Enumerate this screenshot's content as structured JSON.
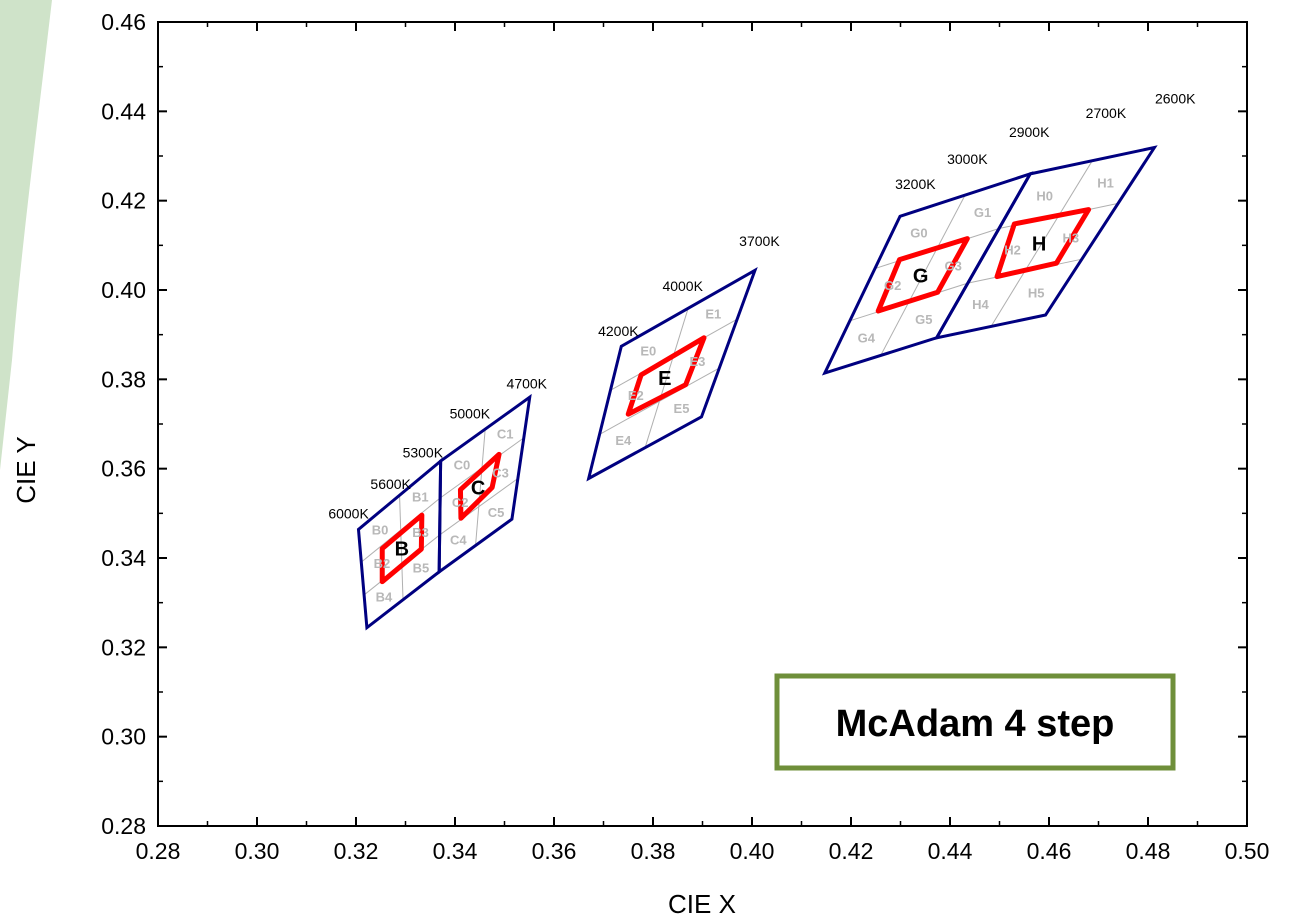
{
  "colors": {
    "bin_outline": "#000080",
    "macadam_ellipse": "#ff0000",
    "subgrid": "#b0b0b0",
    "annotation_border": "#6f8f3a",
    "background_accent": "#cfe3c9"
  },
  "chart_data": {
    "type": "scatter",
    "title": "",
    "xlabel": "CIE X",
    "ylabel": "CIE Y",
    "xlim": [
      0.28,
      0.5
    ],
    "ylim": [
      0.28,
      0.46
    ],
    "xticks": [
      "0.28",
      "0.30",
      "0.32",
      "0.34",
      "0.36",
      "0.38",
      "0.40",
      "0.42",
      "0.44",
      "0.46",
      "0.48",
      "0.50"
    ],
    "yticks": [
      "0.28",
      "0.30",
      "0.32",
      "0.34",
      "0.36",
      "0.38",
      "0.40",
      "0.42",
      "0.44",
      "0.46"
    ],
    "grid": false,
    "annotation": "McAdam 4 step",
    "cct_labels": [
      {
        "text": "6000K",
        "x": 0.3185,
        "y": 0.3488
      },
      {
        "text": "5600K",
        "x": 0.327,
        "y": 0.3555
      },
      {
        "text": "5300K",
        "x": 0.3335,
        "y": 0.3625
      },
      {
        "text": "5000K",
        "x": 0.343,
        "y": 0.3712
      },
      {
        "text": "4700K",
        "x": 0.3545,
        "y": 0.378
      },
      {
        "text": "4200K",
        "x": 0.373,
        "y": 0.3897
      },
      {
        "text": "4000K",
        "x": 0.386,
        "y": 0.3998
      },
      {
        "text": "3700K",
        "x": 0.4015,
        "y": 0.4098
      },
      {
        "text": "3200K",
        "x": 0.433,
        "y": 0.4226
      },
      {
        "text": "3000K",
        "x": 0.4435,
        "y": 0.4282
      },
      {
        "text": "2900K",
        "x": 0.456,
        "y": 0.4343
      },
      {
        "text": "2700K",
        "x": 0.4715,
        "y": 0.4385
      },
      {
        "text": "2600K",
        "x": 0.4855,
        "y": 0.4418
      }
    ],
    "bins": [
      {
        "name": "B",
        "outline": [
          [
            0.3205,
            0.3464
          ],
          [
            0.3371,
            0.3617
          ],
          [
            0.3368,
            0.3369
          ],
          [
            0.3222,
            0.3244
          ]
        ]
      },
      {
        "name": "C",
        "outline": [
          [
            0.3371,
            0.3617
          ],
          [
            0.3551,
            0.376
          ],
          [
            0.3515,
            0.3487
          ],
          [
            0.3368,
            0.3369
          ]
        ]
      },
      {
        "name": "E",
        "outline": [
          [
            0.3736,
            0.3874
          ],
          [
            0.4006,
            0.4044
          ],
          [
            0.3898,
            0.3716
          ],
          [
            0.367,
            0.3578
          ]
        ]
      },
      {
        "name": "G",
        "outline": [
          [
            0.4299,
            0.4165
          ],
          [
            0.4562,
            0.426
          ],
          [
            0.4373,
            0.3893
          ],
          [
            0.4147,
            0.3814
          ]
        ]
      },
      {
        "name": "H",
        "outline": [
          [
            0.4562,
            0.426
          ],
          [
            0.4813,
            0.4319
          ],
          [
            0.4593,
            0.3944
          ],
          [
            0.4373,
            0.3893
          ]
        ]
      }
    ],
    "subbins": [
      {
        "group": "B",
        "labels": [
          "B0",
          "B1",
          "B2",
          "B3",
          "B4",
          "B5"
        ]
      },
      {
        "group": "C",
        "labels": [
          "C0",
          "C1",
          "C2",
          "C3",
          "C4",
          "C5"
        ]
      },
      {
        "group": "E",
        "labels": [
          "E0",
          "E1",
          "E2",
          "E3",
          "E4",
          "E5"
        ]
      },
      {
        "group": "G",
        "labels": [
          "G0",
          "G1",
          "G2",
          "G3",
          "G4",
          "G5"
        ]
      },
      {
        "group": "H",
        "labels": [
          "H0",
          "H1",
          "H2",
          "H3",
          "H4",
          "H5"
        ]
      }
    ],
    "macadam_quads": [
      {
        "name": "B",
        "points": [
          [
            0.3253,
            0.3421
          ],
          [
            0.3333,
            0.3496
          ],
          [
            0.3332,
            0.342
          ],
          [
            0.3253,
            0.3347
          ]
        ]
      },
      {
        "name": "C",
        "points": [
          [
            0.3411,
            0.3553
          ],
          [
            0.3489,
            0.3632
          ],
          [
            0.3475,
            0.3558
          ],
          [
            0.3412,
            0.3489
          ]
        ]
      },
      {
        "name": "E",
        "points": [
          [
            0.3776,
            0.381
          ],
          [
            0.3903,
            0.3893
          ],
          [
            0.3866,
            0.3788
          ],
          [
            0.375,
            0.3722
          ]
        ]
      },
      {
        "name": "G",
        "points": [
          [
            0.4298,
            0.4068
          ],
          [
            0.4435,
            0.4115
          ],
          [
            0.4375,
            0.3995
          ],
          [
            0.4255,
            0.3953
          ]
        ]
      },
      {
        "name": "H",
        "points": [
          [
            0.453,
            0.4148
          ],
          [
            0.468,
            0.418
          ],
          [
            0.4615,
            0.406
          ],
          [
            0.4495,
            0.403
          ]
        ]
      }
    ]
  }
}
